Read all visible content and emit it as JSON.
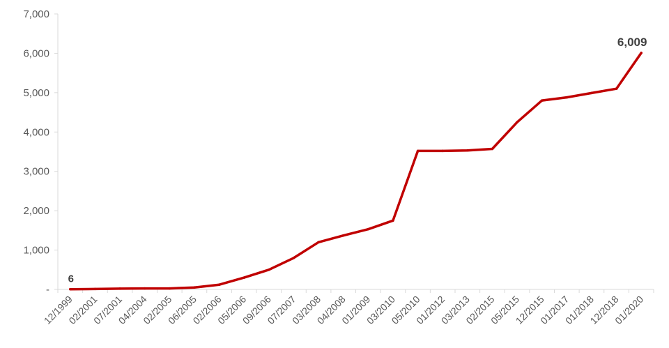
{
  "chart_data": {
    "type": "line",
    "title": "",
    "xlabel": "",
    "ylabel": "",
    "ylim": [
      0,
      7000
    ],
    "yticks": [
      0,
      1000,
      2000,
      3000,
      4000,
      5000,
      6000,
      7000
    ],
    "ytick_labels": [
      "-",
      "1,000",
      "2,000",
      "3,000",
      "4,000",
      "5,000",
      "6,000",
      "7,000"
    ],
    "grid": false,
    "legend": "none",
    "categories": [
      "12/1999",
      "02/2001",
      "07/2001",
      "04/2004",
      "02/2005",
      "06/2005",
      "02/2006",
      "05/2006",
      "09/2006",
      "07/2007",
      "03/2008",
      "04/2008",
      "01/2009",
      "03/2010",
      "05/2010",
      "01/2012",
      "03/2013",
      "02/2015",
      "05/2015",
      "12/2015",
      "01/2017",
      "01/2018",
      "12/2018",
      "01/2020"
    ],
    "series": [
      {
        "color": "#c00000",
        "values": [
          6,
          10,
          20,
          25,
          25,
          50,
          120,
          300,
          500,
          800,
          1200,
          1370,
          1530,
          1750,
          3520,
          3520,
          3530,
          3570,
          4250,
          4800,
          4880,
          4990,
          5100,
          6009
        ]
      }
    ],
    "annotations": [
      {
        "index": 0,
        "text": "6"
      },
      {
        "index": 23,
        "text": "6,009"
      }
    ]
  }
}
